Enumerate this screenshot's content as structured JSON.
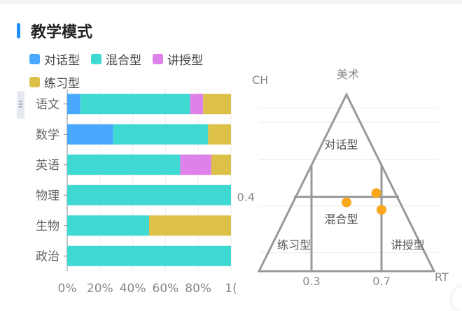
{
  "title": "教学模式",
  "colors": {
    "accent": "#1e90ff",
    "dialog": "#4aa8ff",
    "mixed": "#3fd9d2",
    "lecture": "#de82ea",
    "practice": "#ddc048",
    "triangle": "#999999",
    "point": "#f9a81b"
  },
  "legend": [
    {
      "label": "对话型",
      "color": "#4aa8ff"
    },
    {
      "label": "混合型",
      "color": "#3fd9d2"
    },
    {
      "label": "讲授型",
      "color": "#de82ea"
    },
    {
      "label": "练习型",
      "color": "#ddc048"
    }
  ],
  "chart_data": [
    {
      "type": "bar",
      "orientation": "horizontal",
      "stacked": true,
      "categories": [
        "语文",
        "数学",
        "英语",
        "物理",
        "生物",
        "政治"
      ],
      "series": [
        {
          "name": "对话型",
          "values": [
            8,
            28,
            0,
            0,
            0,
            0
          ]
        },
        {
          "name": "混合型",
          "values": [
            67,
            58,
            69,
            100,
            50,
            100
          ]
        },
        {
          "name": "讲授型",
          "values": [
            8,
            0,
            19,
            0,
            0,
            0
          ]
        },
        {
          "name": "练习型",
          "values": [
            17,
            14,
            12,
            0,
            50,
            0
          ]
        }
      ],
      "xlim": [
        0,
        100
      ],
      "xticks": [
        "0%",
        "20%",
        "40%",
        "60%",
        "80%",
        "1("
      ],
      "grid": true
    },
    {
      "type": "scatter",
      "subtype": "ternary",
      "vertex_labels": {
        "top": "美术",
        "left_axis": "CH",
        "right_axis": "RT"
      },
      "region_labels": [
        "对话型",
        "混合型",
        "练习型",
        "讲授型"
      ],
      "x_ticks": [
        "0.3",
        "0.7"
      ],
      "y_ticks": [
        "0.4"
      ],
      "x_range": [
        0,
        1
      ],
      "y_range": [
        0,
        1
      ],
      "points": [
        {
          "x": 0.5,
          "y": 0.37
        },
        {
          "x": 0.67,
          "y": 0.42
        },
        {
          "x": 0.7,
          "y": 0.33
        }
      ],
      "grid": true
    }
  ]
}
